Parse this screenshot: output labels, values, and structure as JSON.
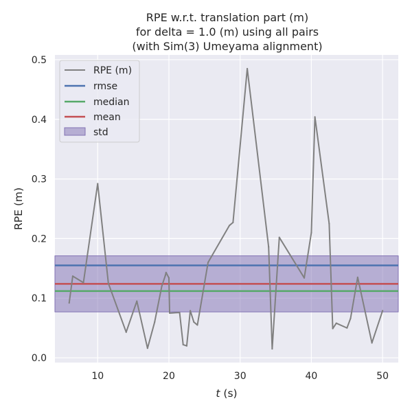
{
  "chart_data": {
    "type": "line",
    "title_lines": [
      "RPE w.r.t. translation part (m)",
      "for delta = 1.0 (m) using all pairs",
      "(with Sim(3) Umeyama alignment)"
    ],
    "xlabel_italic": "t",
    "xlabel_rest": " (s)",
    "ylabel": "RPE (m)",
    "xlim": [
      4.0,
      52.2
    ],
    "ylim": [
      -0.008,
      0.508
    ],
    "xticks": [
      10,
      20,
      30,
      40,
      50
    ],
    "yticks": [
      0.0,
      0.1,
      0.2,
      0.3,
      0.4,
      0.5
    ],
    "ytick_labels": [
      "0.0",
      "0.1",
      "0.2",
      "0.3",
      "0.4",
      "0.5"
    ],
    "grid": true,
    "legend_position": "upper left",
    "series": [
      {
        "name": "RPE (m)",
        "color": "#808080",
        "x": [
          6.0,
          6.5,
          8.0,
          10.0,
          11.5,
          14.0,
          15.5,
          17.0,
          18.0,
          19.0,
          19.5,
          19.6,
          20.0,
          20.1,
          21.5,
          22.0,
          22.5,
          23.0,
          23.5,
          24.0,
          25.5,
          28.5,
          29.0,
          31.0,
          34.0,
          34.5,
          35.5,
          39.0,
          40.0,
          40.5,
          42.5,
          43.0,
          43.5,
          45.0,
          45.5,
          46.5,
          48.5,
          50.0
        ],
        "y": [
          0.092,
          0.137,
          0.126,
          0.292,
          0.125,
          0.043,
          0.095,
          0.016,
          0.06,
          0.12,
          0.138,
          0.143,
          0.134,
          0.075,
          0.076,
          0.022,
          0.02,
          0.079,
          0.06,
          0.055,
          0.16,
          0.222,
          0.227,
          0.485,
          0.186,
          0.015,
          0.202,
          0.134,
          0.21,
          0.404,
          0.225,
          0.049,
          0.058,
          0.05,
          0.066,
          0.135,
          0.025,
          0.079
        ]
      }
    ],
    "stats": {
      "rmse": {
        "name": "rmse",
        "value": 0.155,
        "color": "#4c72b0"
      },
      "median": {
        "name": "median",
        "value": 0.112,
        "color": "#55a868"
      },
      "mean": {
        "name": "mean",
        "value": 0.124,
        "color": "#c44e52"
      },
      "std": {
        "name": "std",
        "low": 0.077,
        "high": 0.171,
        "color": "#8172b3"
      }
    }
  }
}
